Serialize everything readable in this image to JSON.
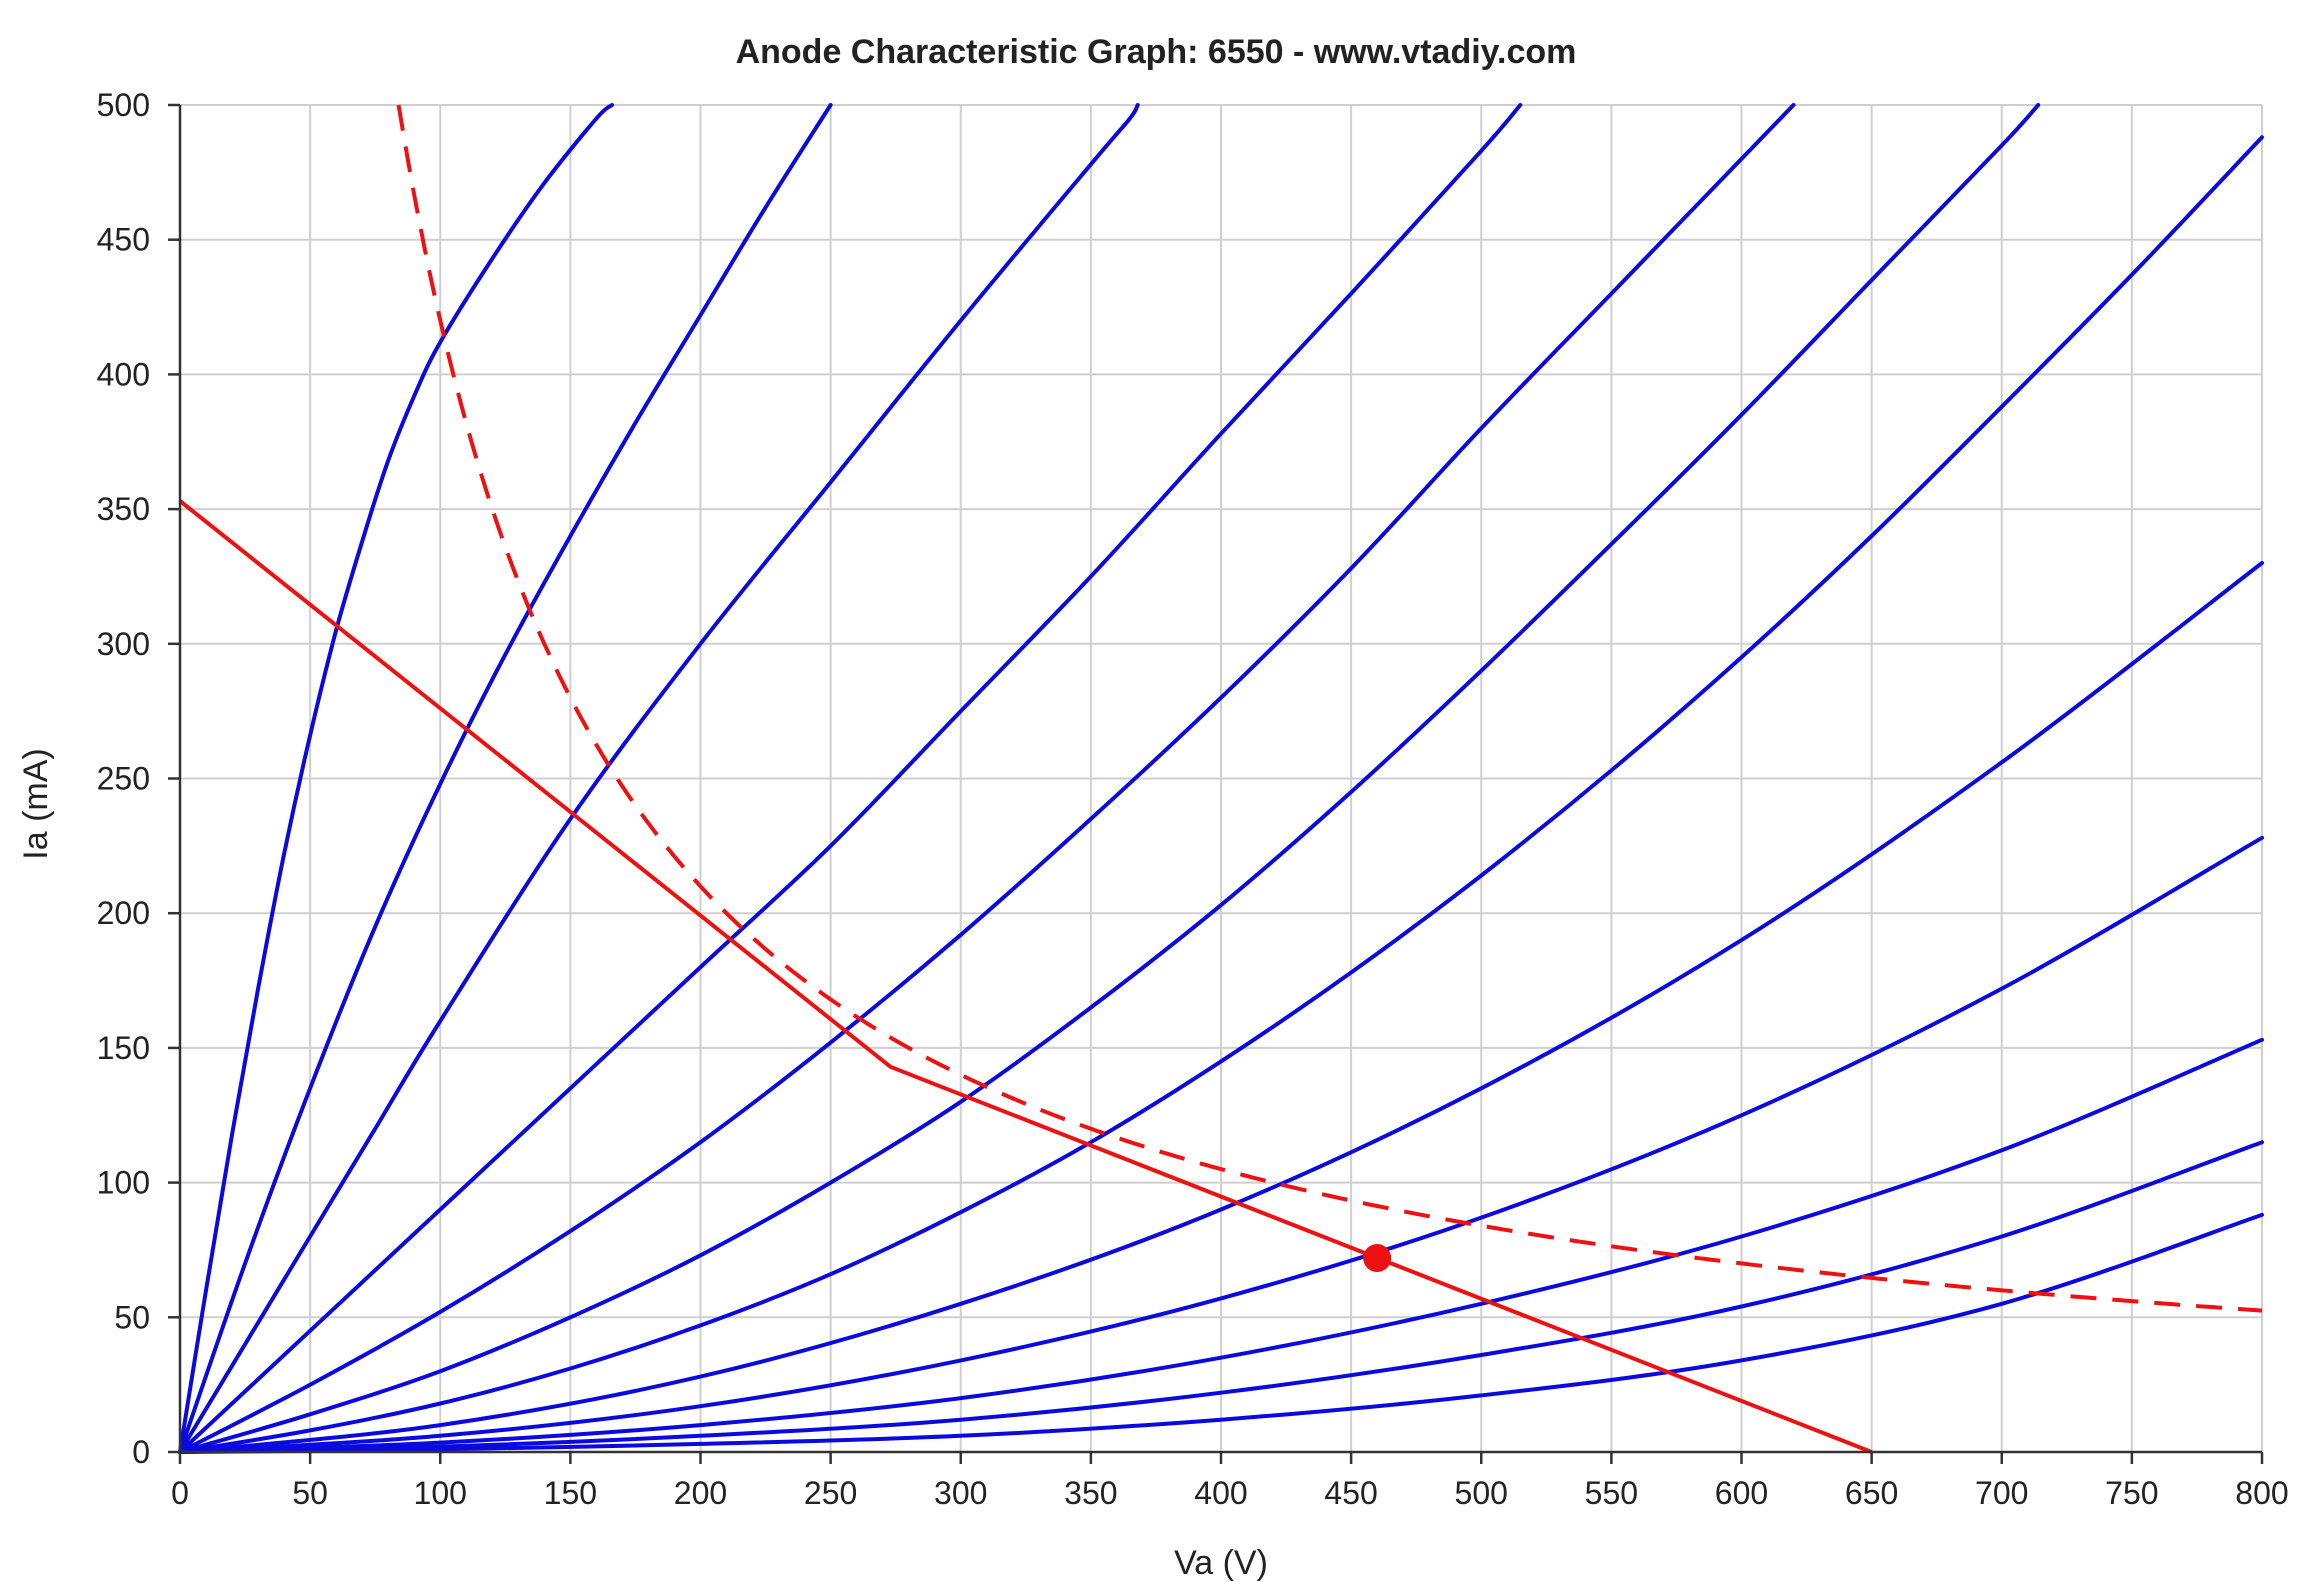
{
  "chart_data": {
    "type": "line",
    "title": "Anode Characteristic Graph: 6550 - www.vtadiy.com",
    "xlabel": "Va (V)",
    "ylabel": "Ia (mA)",
    "xlim": [
      0,
      800
    ],
    "ylim": [
      0,
      500
    ],
    "xticks": [
      0,
      50,
      100,
      150,
      200,
      250,
      300,
      350,
      400,
      450,
      500,
      550,
      600,
      650,
      700,
      750,
      800
    ],
    "yticks": [
      0,
      50,
      100,
      150,
      200,
      250,
      300,
      350,
      400,
      450,
      500
    ],
    "grid": true,
    "colors": {
      "curves": "#0a0ae0",
      "load": "#ee1111",
      "axis": "#333333",
      "grid": "#cfcfcf"
    },
    "anode_curves": [
      {
        "points": [
          [
            0,
            0
          ],
          [
            10,
            60
          ],
          [
            20,
            118
          ],
          [
            30,
            172
          ],
          [
            40,
            222
          ],
          [
            50,
            266
          ],
          [
            60,
            305
          ],
          [
            70,
            338
          ],
          [
            80,
            368
          ],
          [
            90,
            392
          ],
          [
            100,
            412
          ],
          [
            120,
            443
          ],
          [
            140,
            471
          ],
          [
            160,
            495
          ],
          [
            166,
            500
          ]
        ]
      },
      {
        "points": [
          [
            0,
            0
          ],
          [
            25,
            70
          ],
          [
            50,
            135
          ],
          [
            75,
            195
          ],
          [
            100,
            248
          ],
          [
            125,
            296
          ],
          [
            150,
            340
          ],
          [
            175,
            382
          ],
          [
            200,
            422
          ],
          [
            225,
            462
          ],
          [
            250,
            500
          ]
        ]
      },
      {
        "points": [
          [
            0,
            0
          ],
          [
            25,
            40
          ],
          [
            50,
            80
          ],
          [
            75,
            120
          ],
          [
            100,
            160
          ],
          [
            150,
            235
          ],
          [
            200,
            300
          ],
          [
            250,
            360
          ],
          [
            300,
            420
          ],
          [
            350,
            478
          ],
          [
            365,
            495
          ],
          [
            368,
            500
          ]
        ]
      },
      {
        "points": [
          [
            0,
            0
          ],
          [
            50,
            45
          ],
          [
            100,
            90
          ],
          [
            150,
            135
          ],
          [
            200,
            180
          ],
          [
            250,
            225
          ],
          [
            300,
            275
          ],
          [
            350,
            325
          ],
          [
            400,
            378
          ],
          [
            450,
            430
          ],
          [
            500,
            483
          ],
          [
            515,
            500
          ]
        ]
      },
      {
        "points": [
          [
            0,
            0
          ],
          [
            50,
            25
          ],
          [
            100,
            52
          ],
          [
            150,
            82
          ],
          [
            200,
            115
          ],
          [
            250,
            152
          ],
          [
            300,
            192
          ],
          [
            350,
            235
          ],
          [
            400,
            280
          ],
          [
            450,
            328
          ],
          [
            500,
            380
          ],
          [
            550,
            430
          ],
          [
            600,
            480
          ],
          [
            620,
            500
          ]
        ]
      },
      {
        "points": [
          [
            0,
            0
          ],
          [
            50,
            14
          ],
          [
            100,
            30
          ],
          [
            150,
            50
          ],
          [
            200,
            73
          ],
          [
            250,
            100
          ],
          [
            300,
            130
          ],
          [
            350,
            165
          ],
          [
            400,
            203
          ],
          [
            450,
            245
          ],
          [
            500,
            290
          ],
          [
            550,
            337
          ],
          [
            600,
            385
          ],
          [
            650,
            435
          ],
          [
            700,
            485
          ],
          [
            714,
            500
          ]
        ]
      },
      {
        "points": [
          [
            0,
            0
          ],
          [
            50,
            8
          ],
          [
            100,
            18
          ],
          [
            150,
            31
          ],
          [
            200,
            47
          ],
          [
            250,
            66
          ],
          [
            300,
            89
          ],
          [
            350,
            115
          ],
          [
            400,
            145
          ],
          [
            450,
            178
          ],
          [
            500,
            214
          ],
          [
            550,
            253
          ],
          [
            600,
            295
          ],
          [
            650,
            340
          ],
          [
            700,
            388
          ],
          [
            750,
            437
          ],
          [
            800,
            488
          ]
        ]
      },
      {
        "points": [
          [
            0,
            0
          ],
          [
            100,
            10
          ],
          [
            200,
            28
          ],
          [
            300,
            55
          ],
          [
            400,
            90
          ],
          [
            500,
            135
          ],
          [
            600,
            190
          ],
          [
            700,
            256
          ],
          [
            800,
            330
          ]
        ]
      },
      {
        "points": [
          [
            0,
            0
          ],
          [
            100,
            6
          ],
          [
            200,
            17
          ],
          [
            300,
            34
          ],
          [
            400,
            57
          ],
          [
            500,
            87
          ],
          [
            600,
            125
          ],
          [
            700,
            172
          ],
          [
            800,
            228
          ]
        ]
      },
      {
        "points": [
          [
            0,
            0
          ],
          [
            100,
            3.5
          ],
          [
            200,
            10
          ],
          [
            300,
            20
          ],
          [
            400,
            35
          ],
          [
            500,
            55
          ],
          [
            600,
            80
          ],
          [
            700,
            112
          ],
          [
            800,
            153
          ]
        ]
      },
      {
        "points": [
          [
            0,
            0
          ],
          [
            100,
            2
          ],
          [
            200,
            6
          ],
          [
            300,
            12
          ],
          [
            400,
            22
          ],
          [
            500,
            36
          ],
          [
            600,
            54
          ],
          [
            700,
            80
          ],
          [
            800,
            115
          ]
        ]
      },
      {
        "points": [
          [
            0,
            0
          ],
          [
            100,
            1
          ],
          [
            200,
            3
          ],
          [
            300,
            6
          ],
          [
            400,
            12
          ],
          [
            500,
            21
          ],
          [
            600,
            34
          ],
          [
            700,
            55
          ],
          [
            800,
            88
          ]
        ]
      }
    ],
    "load_line": {
      "points": [
        [
          0,
          353
        ],
        [
          273,
          143
        ],
        [
          650,
          0
        ]
      ]
    },
    "dissipation_curve": {
      "watts": 42,
      "va_range": [
        84,
        800
      ]
    },
    "operating_point": {
      "va": 460,
      "ia": 72
    }
  }
}
